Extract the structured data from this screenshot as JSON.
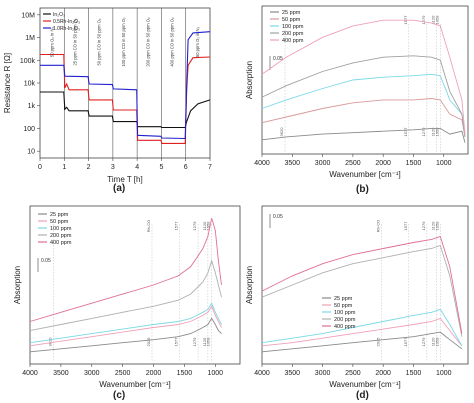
{
  "panels": {
    "a": {
      "label": "(a)"
    },
    "b": {
      "label": "(b)"
    },
    "c": {
      "label": "(c)"
    },
    "d": {
      "label": "(d)"
    }
  },
  "chart_data": [
    {
      "id": "a",
      "type": "line",
      "xlabel": "Time T [h]",
      "ylabel": "Resistance R [Ω]",
      "xlim": [
        0,
        7
      ],
      "xticks": [
        0,
        1,
        2,
        3,
        4,
        5,
        6,
        7
      ],
      "ylim_log10": [
        0.7,
        7.3
      ],
      "yticks": [
        {
          "v": 10,
          "t": "10"
        },
        {
          "v": 100,
          "t": "100"
        },
        {
          "v": 1000,
          "t": "1k"
        },
        {
          "v": 10000,
          "t": "10k"
        },
        {
          "v": 100000,
          "t": "100k"
        },
        {
          "v": 1000000,
          "t": "1M"
        },
        {
          "v": 10000000,
          "t": "10M"
        }
      ],
      "legend": [
        "In₂O₃",
        "0.5Rh-In₂O₃",
        "1.0Rh-In₂O₃"
      ],
      "annotations": [
        "50 ppm O₂ in N₂",
        "25 ppm CO in 50 ppm O₂",
        "50 ppm CO in 50 ppm O₂",
        "100 ppm CO in 50 ppm O₂",
        "200 ppm CO in 50 ppm O₂",
        "400 ppm CO in 50 ppm O₂",
        "50 ppm O₂ in N₂"
      ],
      "vlines": [
        1,
        2,
        3,
        4,
        5,
        6
      ],
      "series": [
        {
          "name": "In₂O₃",
          "color": "#111111",
          "points": [
            [
              0,
              4000
            ],
            [
              0.98,
              4000
            ],
            [
              1.02,
              700
            ],
            [
              1.1,
              850
            ],
            [
              1.2,
              600
            ],
            [
              1.98,
              600
            ],
            [
              2.02,
              350
            ],
            [
              2.98,
              350
            ],
            [
              3.02,
              200
            ],
            [
              3.98,
              200
            ],
            [
              4.02,
              120
            ],
            [
              4.98,
              120
            ],
            [
              5.02,
              110
            ],
            [
              5.98,
              110
            ],
            [
              6.04,
              200
            ],
            [
              6.2,
              600
            ],
            [
              6.5,
              1200
            ],
            [
              7,
              1800
            ]
          ]
        },
        {
          "name": "0.5Rh-In₂O₃",
          "color": "#e02020",
          "points": [
            [
              0,
              180000
            ],
            [
              0.98,
              180000
            ],
            [
              1.02,
              6000
            ],
            [
              1.1,
              9000
            ],
            [
              1.2,
              5000
            ],
            [
              1.98,
              5000
            ],
            [
              2.02,
              1800
            ],
            [
              2.98,
              1800
            ],
            [
              3.02,
              650
            ],
            [
              3.98,
              650
            ],
            [
              4.02,
              30
            ],
            [
              4.98,
              30
            ],
            [
              5.02,
              22
            ],
            [
              5.98,
              22
            ],
            [
              6.04,
              5000
            ],
            [
              6.1,
              60000
            ],
            [
              6.3,
              130000
            ],
            [
              7,
              140000
            ]
          ]
        },
        {
          "name": "1.0Rh-In₂O₃",
          "color": "#2020d0",
          "points": [
            [
              0,
              60000
            ],
            [
              0.98,
              60000
            ],
            [
              1.02,
              20000
            ],
            [
              1.98,
              19000
            ],
            [
              2.02,
              9000
            ],
            [
              2.98,
              8500
            ],
            [
              3.02,
              5500
            ],
            [
              3.98,
              5000
            ],
            [
              4.02,
              50
            ],
            [
              4.98,
              45
            ],
            [
              5.02,
              38
            ],
            [
              5.98,
              36
            ],
            [
              6.04,
              10000
            ],
            [
              6.1,
              800000
            ],
            [
              6.3,
              1600000
            ],
            [
              7,
              1800000
            ]
          ]
        }
      ]
    },
    {
      "id": "b",
      "type": "line",
      "xlabel": "Wavenumber [cm⁻¹]",
      "ylabel": "Absorption",
      "xlim": [
        4000,
        600
      ],
      "xticks": [
        4000,
        3500,
        3000,
        2500,
        2000,
        1500,
        1000
      ],
      "scalebar": "0.05",
      "legend": [
        "25 ppm",
        "50 ppm",
        "100 ppm",
        "200 ppm",
        "400 ppm"
      ],
      "peak_labels": [
        "3620",
        "1577",
        "1279",
        "1120",
        "1058"
      ],
      "top_labels": [
        "1577",
        "1279",
        "1120",
        "1058"
      ],
      "series": [
        {
          "name": "25 ppm",
          "color": "#8a8a8a",
          "x": [
            4000,
            3600,
            3000,
            2500,
            2000,
            1500,
            1200,
            1058,
            900,
            700,
            650
          ],
          "y": [
            0.01,
            0.02,
            0.03,
            0.035,
            0.04,
            0.045,
            0.05,
            0.05,
            0.03,
            0.04,
            0.0
          ]
        },
        {
          "name": "50 ppm",
          "color": "#d99a9a",
          "x": [
            4000,
            3600,
            3000,
            2500,
            2000,
            1500,
            1200,
            1058,
            900,
            700,
            650
          ],
          "y": [
            0.07,
            0.09,
            0.12,
            0.14,
            0.15,
            0.15,
            0.155,
            0.15,
            0.1,
            0.08,
            0.02
          ]
        },
        {
          "name": "100 ppm",
          "color": "#7ad9e6",
          "x": [
            4000,
            3600,
            3000,
            2500,
            2000,
            1500,
            1200,
            1058,
            900,
            700,
            650
          ],
          "y": [
            0.12,
            0.15,
            0.19,
            0.22,
            0.23,
            0.235,
            0.24,
            0.235,
            0.15,
            0.1,
            0.02
          ]
        },
        {
          "name": "200 ppm",
          "color": "#a0a0a0",
          "x": [
            4000,
            3600,
            3000,
            2500,
            2000,
            1500,
            1200,
            1058,
            900,
            700,
            650
          ],
          "y": [
            0.16,
            0.2,
            0.25,
            0.28,
            0.3,
            0.305,
            0.3,
            0.29,
            0.18,
            0.1,
            0.02
          ]
        },
        {
          "name": "400 ppm",
          "color": "#f0a0b8",
          "x": [
            4000,
            3600,
            3000,
            2500,
            2000,
            1500,
            1200,
            1058,
            900,
            700,
            650
          ],
          "y": [
            0.24,
            0.3,
            0.37,
            0.41,
            0.43,
            0.43,
            0.42,
            0.41,
            0.3,
            0.15,
            0.03
          ]
        }
      ]
    },
    {
      "id": "c",
      "type": "line",
      "xlabel": "Wavenumber [cm⁻¹]",
      "ylabel": "Absorption",
      "xlim": [
        4000,
        600
      ],
      "xticks": [
        4000,
        3500,
        3000,
        2500,
        2000,
        1500,
        1000
      ],
      "scalebar": "0.05",
      "legend": [
        "25 ppm",
        "50 ppm",
        "100 ppm",
        "200 ppm",
        "400 ppm"
      ],
      "peak_labels": [
        "3620",
        "2025",
        "1577",
        "1279",
        "1120",
        "1058"
      ],
      "top_labels": [
        "Rh-CO",
        "1577",
        "1279",
        "1120",
        "1058"
      ],
      "series": [
        {
          "name": "25 ppm",
          "color": "#8a8a8a",
          "x": [
            4000,
            3500,
            3000,
            2500,
            2000,
            1600,
            1400,
            1300,
            1200,
            1120,
            1058,
            1000,
            950,
            900
          ],
          "y": [
            0.0,
            0.01,
            0.02,
            0.03,
            0.04,
            0.05,
            0.06,
            0.07,
            0.08,
            0.09,
            0.11,
            0.09,
            0.07,
            0.06
          ]
        },
        {
          "name": "50 ppm",
          "color": "#f0a0b8",
          "x": [
            4000,
            3500,
            3000,
            2500,
            2000,
            1600,
            1400,
            1300,
            1200,
            1120,
            1058,
            1000,
            950,
            900
          ],
          "y": [
            0.02,
            0.035,
            0.05,
            0.065,
            0.08,
            0.09,
            0.1,
            0.11,
            0.12,
            0.13,
            0.15,
            0.12,
            0.1,
            0.08
          ]
        },
        {
          "name": "100 ppm",
          "color": "#7ad9e6",
          "x": [
            4000,
            3500,
            3000,
            2500,
            2000,
            1600,
            1400,
            1300,
            1200,
            1120,
            1058,
            1000,
            950,
            900
          ],
          "y": [
            0.03,
            0.045,
            0.06,
            0.075,
            0.09,
            0.1,
            0.11,
            0.12,
            0.13,
            0.14,
            0.16,
            0.13,
            0.11,
            0.09
          ]
        },
        {
          "name": "200 ppm",
          "color": "#b0b0b0",
          "x": [
            4000,
            3500,
            3000,
            2500,
            2000,
            1600,
            1400,
            1300,
            1200,
            1120,
            1058,
            1000,
            950,
            900
          ],
          "y": [
            0.07,
            0.09,
            0.11,
            0.13,
            0.15,
            0.17,
            0.19,
            0.21,
            0.23,
            0.26,
            0.3,
            0.26,
            0.22,
            0.18
          ]
        },
        {
          "name": "400 ppm",
          "color": "#e07090",
          "x": [
            4000,
            3500,
            3000,
            2500,
            2000,
            1600,
            1400,
            1300,
            1200,
            1120,
            1058,
            1000,
            950,
            900
          ],
          "y": [
            0.1,
            0.13,
            0.16,
            0.19,
            0.22,
            0.25,
            0.28,
            0.31,
            0.34,
            0.38,
            0.44,
            0.4,
            0.3,
            0.22
          ]
        }
      ]
    },
    {
      "id": "d",
      "type": "line",
      "xlabel": "Wavenumber [cm⁻¹]",
      "ylabel": "Absorption",
      "xlim": [
        4000,
        600
      ],
      "xticks": [
        4000,
        3500,
        3000,
        2500,
        2000,
        1500,
        1000
      ],
      "scalebar": "0.05",
      "legend": [
        "25 ppm",
        "50 ppm",
        "100 ppm",
        "200 ppm",
        "400 ppm"
      ],
      "peak_labels": [
        "2025",
        "1577",
        "1279",
        "1120",
        "1058"
      ],
      "top_labels": [
        "Rh-CO",
        "1577",
        "1279",
        "1120",
        "1058"
      ],
      "series": [
        {
          "name": "25 ppm",
          "color": "#8a8a8a",
          "x": [
            4000,
            3500,
            3000,
            2500,
            2000,
            1500,
            1200,
            1058,
            900,
            700
          ],
          "y": [
            0.0,
            0.01,
            0.02,
            0.03,
            0.04,
            0.05,
            0.06,
            0.065,
            0.04,
            0.01
          ]
        },
        {
          "name": "50 ppm",
          "color": "#f0a0b8",
          "x": [
            4000,
            3500,
            3000,
            2500,
            2000,
            1500,
            1200,
            1058,
            900,
            700
          ],
          "y": [
            0.02,
            0.03,
            0.045,
            0.06,
            0.075,
            0.09,
            0.1,
            0.11,
            0.07,
            0.02
          ]
        },
        {
          "name": "100 ppm",
          "color": "#7ad9e6",
          "x": [
            4000,
            3500,
            3000,
            2500,
            2000,
            1500,
            1200,
            1058,
            900,
            700
          ],
          "y": [
            0.03,
            0.045,
            0.06,
            0.08,
            0.1,
            0.12,
            0.13,
            0.14,
            0.09,
            0.02
          ]
        },
        {
          "name": "200 ppm",
          "color": "#b0b0b0",
          "x": [
            4000,
            3500,
            3000,
            2500,
            2000,
            1500,
            1200,
            1058,
            900,
            700
          ],
          "y": [
            0.18,
            0.22,
            0.26,
            0.29,
            0.31,
            0.33,
            0.34,
            0.35,
            0.25,
            0.05
          ]
        },
        {
          "name": "400 ppm",
          "color": "#e07090",
          "x": [
            4000,
            3500,
            3000,
            2500,
            2000,
            1500,
            1200,
            1058,
            900,
            700
          ],
          "y": [
            0.2,
            0.25,
            0.29,
            0.32,
            0.34,
            0.36,
            0.37,
            0.38,
            0.28,
            0.06
          ]
        }
      ]
    }
  ]
}
